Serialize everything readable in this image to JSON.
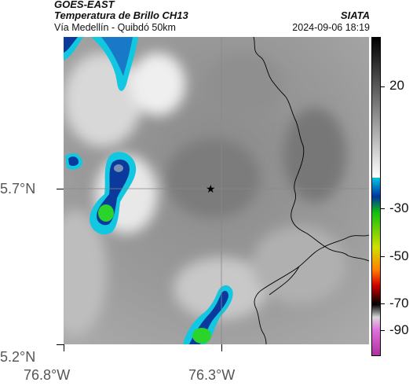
{
  "header": {
    "satellite": "GOES-EAST",
    "product": "Temperatura de Brillo CH13",
    "agency": "SIATA",
    "route": "Vía Medellín - Quibdó 50km",
    "datetime": "2024-09-06 18:19"
  },
  "axes": {
    "y_ticks": [
      "5.7°N",
      "5.2°N"
    ],
    "x_ticks": [
      "76.8°W",
      "76.3°W"
    ]
  },
  "colorbar": {
    "ticks": [
      "20",
      "-30",
      "-50",
      "-70",
      "-90"
    ]
  },
  "map": {
    "marker_icon": "star-icon",
    "colors": {
      "cloud_cold_cyan": "#11c8e0",
      "cloud_colder_blue": "#0b3a9c",
      "cloud_coldest_green": "#2ad42a",
      "grid_line": "#888888",
      "border_line": "#000000"
    }
  }
}
